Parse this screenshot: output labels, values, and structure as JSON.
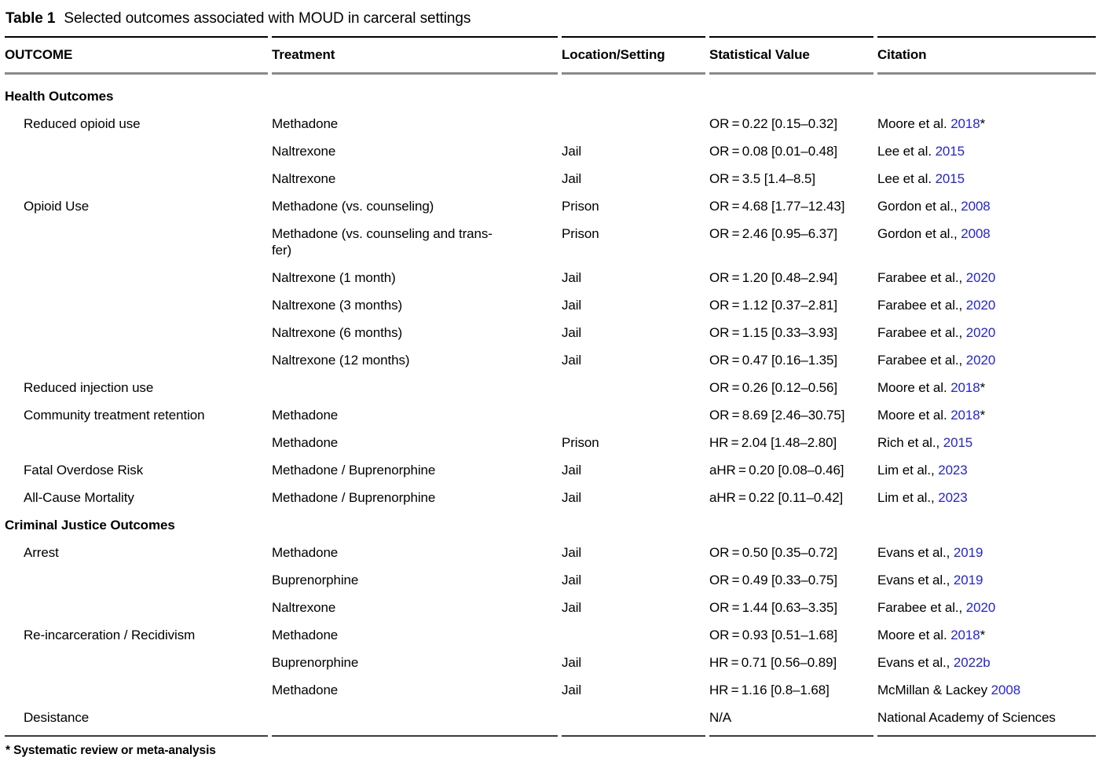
{
  "title": {
    "label": "Table 1",
    "text": "Selected outcomes associated with MOUD in carceral settings"
  },
  "columns": [
    "OUTCOME",
    "Treatment",
    "Location/Setting",
    "Statistical Value",
    "Citation"
  ],
  "colors": {
    "link": "#2323df"
  },
  "rows": [
    {
      "type": "section",
      "outcome": "Health Outcomes"
    },
    {
      "type": "data",
      "outcome": "Reduced opioid use",
      "treatment": "Methadone",
      "location": "",
      "stat": "OR = 0.22 [0.15–0.32]",
      "cite_pre": "Moore et al. ",
      "cite_year": "2018",
      "cite_post": "*"
    },
    {
      "type": "data",
      "outcome": "",
      "treatment": "Naltrexone",
      "location": "Jail",
      "stat": "OR = 0.08 [0.01–0.48]",
      "cite_pre": "Lee et al. ",
      "cite_year": "2015",
      "cite_post": ""
    },
    {
      "type": "data",
      "outcome": "",
      "treatment": "Naltrexone",
      "location": "Jail",
      "stat": "OR = 3.5 [1.4–8.5]",
      "cite_pre": "Lee et al. ",
      "cite_year": "2015",
      "cite_post": ""
    },
    {
      "type": "data",
      "outcome": "Opioid Use",
      "treatment": "Methadone (vs. counseling)",
      "location": "Prison",
      "stat": "OR = 4.68 [1.77–12.43]",
      "cite_pre": "Gordon et al., ",
      "cite_year": "2008",
      "cite_post": ""
    },
    {
      "type": "data",
      "outcome": "",
      "treatment": "Methadone (vs. counseling and trans-\nfer)",
      "location": "Prison",
      "stat": "OR = 2.46 [0.95–6.37]",
      "cite_pre": "Gordon et al., ",
      "cite_year": "2008",
      "cite_post": ""
    },
    {
      "type": "data",
      "outcome": "",
      "treatment": "Naltrexone (1 month)",
      "location": "Jail",
      "stat": "OR = 1.20 [0.48–2.94]",
      "cite_pre": "Farabee et al., ",
      "cite_year": "2020",
      "cite_post": ""
    },
    {
      "type": "data",
      "outcome": "",
      "treatment": "Naltrexone (3 months)",
      "location": "Jail",
      "stat": "OR = 1.12 [0.37–2.81]",
      "cite_pre": "Farabee et al., ",
      "cite_year": "2020",
      "cite_post": ""
    },
    {
      "type": "data",
      "outcome": "",
      "treatment": "Naltrexone (6 months)",
      "location": "Jail",
      "stat": "OR = 1.15 [0.33–3.93]",
      "cite_pre": "Farabee et al., ",
      "cite_year": "2020",
      "cite_post": ""
    },
    {
      "type": "data",
      "outcome": "",
      "treatment": "Naltrexone (12 months)",
      "location": "Jail",
      "stat": "OR = 0.47 [0.16–1.35]",
      "cite_pre": "Farabee et al., ",
      "cite_year": "2020",
      "cite_post": ""
    },
    {
      "type": "data",
      "outcome": "Reduced injection use",
      "treatment": "",
      "location": "",
      "stat": "OR = 0.26 [0.12–0.56]",
      "cite_pre": "Moore et al. ",
      "cite_year": "2018",
      "cite_post": "*"
    },
    {
      "type": "data",
      "outcome": "Community treatment retention",
      "treatment": "Methadone",
      "location": "",
      "stat": "OR = 8.69 [2.46–30.75]",
      "cite_pre": "Moore et al. ",
      "cite_year": "2018",
      "cite_post": "*"
    },
    {
      "type": "data",
      "outcome": "",
      "treatment": "Methadone",
      "location": "Prison",
      "stat": "HR = 2.04 [1.48–2.80]",
      "cite_pre": "Rich et al., ",
      "cite_year": "2015",
      "cite_post": ""
    },
    {
      "type": "data",
      "outcome": "Fatal Overdose Risk",
      "treatment": "Methadone / Buprenorphine",
      "location": "Jail",
      "stat": "aHR = 0.20 [0.08–0.46]",
      "cite_pre": "Lim et al., ",
      "cite_year": "2023",
      "cite_post": ""
    },
    {
      "type": "data",
      "outcome": "All-Cause Mortality",
      "treatment": "Methadone / Buprenorphine",
      "location": "Jail",
      "stat": "aHR = 0.22 [0.11–0.42]",
      "cite_pre": "Lim et al., ",
      "cite_year": "2023",
      "cite_post": ""
    },
    {
      "type": "section",
      "outcome": "Criminal Justice Outcomes"
    },
    {
      "type": "data",
      "outcome": "Arrest",
      "treatment": "Methadone",
      "location": "Jail",
      "stat": "OR = 0.50 [0.35–0.72]",
      "cite_pre": "Evans et al., ",
      "cite_year": "2019",
      "cite_post": ""
    },
    {
      "type": "data",
      "outcome": "",
      "treatment": "Buprenorphine",
      "location": "Jail",
      "stat": "OR = 0.49 [0.33–0.75]",
      "cite_pre": "Evans et al., ",
      "cite_year": "2019",
      "cite_post": ""
    },
    {
      "type": "data",
      "outcome": "",
      "treatment": "Naltrexone",
      "location": "Jail",
      "stat": "OR = 1.44 [0.63–3.35]",
      "cite_pre": "Farabee et al., ",
      "cite_year": "2020",
      "cite_post": ""
    },
    {
      "type": "data",
      "outcome": "Re-incarceration / Recidivism",
      "treatment": "Methadone",
      "location": "",
      "stat": "OR = 0.93 [0.51–1.68]",
      "cite_pre": "Moore et al. ",
      "cite_year": "2018",
      "cite_post": "*"
    },
    {
      "type": "data",
      "outcome": "",
      "treatment": "Buprenorphine",
      "location": "Jail",
      "stat": "HR = 0.71 [0.56–0.89]",
      "cite_pre": "Evans et al., ",
      "cite_year": "2022b",
      "cite_post": ""
    },
    {
      "type": "data",
      "outcome": "",
      "treatment": "Methadone",
      "location": "Jail",
      "stat": "HR = 1.16 [0.8–1.68]",
      "cite_pre": "McMillan & Lackey ",
      "cite_year": "2008",
      "cite_post": ""
    },
    {
      "type": "data",
      "outcome": "Desistance",
      "treatment": "",
      "location": "",
      "stat": "N/A",
      "cite_pre": "National Academy of Sciences",
      "cite_year": "",
      "cite_post": ""
    }
  ],
  "footnote": "* Systematic review or meta-analysis"
}
